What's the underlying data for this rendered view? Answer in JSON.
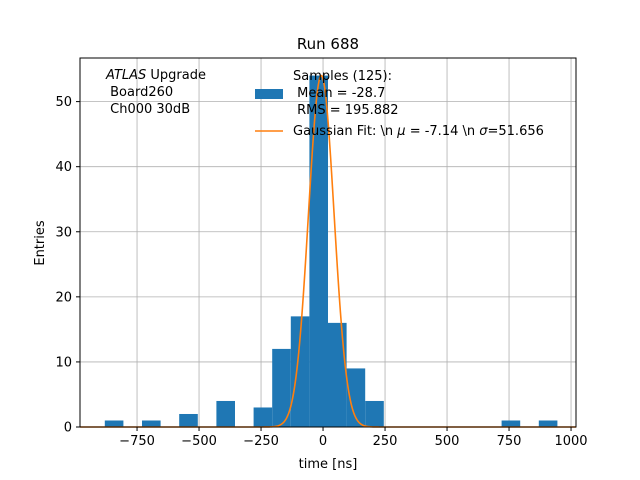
{
  "chart_data": {
    "type": "bar",
    "title": "Run 688",
    "xlabel": "time [ns]",
    "ylabel": "Entries",
    "xlim": [
      -980,
      1020
    ],
    "ylim": [
      0,
      56.7
    ],
    "grid": true,
    "xticks": [
      -750,
      -500,
      -250,
      0,
      250,
      500,
      750,
      1000
    ],
    "xtick_labels": [
      "−750",
      "−500",
      "−250",
      "0",
      "250",
      "500",
      "750",
      "1000"
    ],
    "yticks": [
      0,
      10,
      20,
      30,
      40,
      50
    ],
    "ytick_labels": [
      "0",
      "10",
      "20",
      "30",
      "40",
      "50"
    ],
    "bin_width": 75,
    "bars": [
      {
        "x0": -880,
        "x1": -805,
        "value": 1
      },
      {
        "x0": -730,
        "x1": -655,
        "value": 1
      },
      {
        "x0": -580,
        "x1": -505,
        "value": 2
      },
      {
        "x0": -430,
        "x1": -355,
        "value": 4
      },
      {
        "x0": -280,
        "x1": -205,
        "value": 3
      },
      {
        "x0": -205,
        "x1": -130,
        "value": 12
      },
      {
        "x0": -130,
        "x1": -55,
        "value": 17
      },
      {
        "x0": -55,
        "x1": 20,
        "value": 54
      },
      {
        "x0": 20,
        "x1": 95,
        "value": 16
      },
      {
        "x0": 95,
        "x1": 170,
        "value": 9
      },
      {
        "x0": 170,
        "x1": 245,
        "value": 4
      },
      {
        "x0": 720,
        "x1": 795,
        "value": 1
      },
      {
        "x0": 870,
        "x1": 945,
        "value": 1
      }
    ],
    "gaussian": {
      "amplitude": 54,
      "mu": -7.14,
      "sigma": 51.656
    },
    "series": [
      {
        "name": "Samples (125):",
        "type": "bar",
        "color": "#1f77b4"
      },
      {
        "name": "Gaussian Fit: \\n $\\mu$ = -7.14 \\n $\\sigma$=51.656",
        "type": "line",
        "color": "#ff7f0e"
      }
    ],
    "legend": {
      "placement": "top-center",
      "samples_line1": "Samples (125):",
      "samples_line2": " Mean = -28.7",
      "samples_line3": " RMS = 195.882",
      "fit_prefix": "Gaussian Fit: \\n ",
      "fit_mu_symbol": "μ",
      "fit_mid": " = -7.14 \\n ",
      "fit_sigma_symbol": "σ",
      "fit_suffix": "=51.656"
    },
    "annotation": {
      "line1_italic": "ATLAS",
      "line1_rest": " Upgrade",
      "line2": " Board260",
      "line3": " Ch000 30dB"
    },
    "colors": {
      "bar": "#1f77b4",
      "fit": "#ff7f0e",
      "grid": "#b0b0b0"
    }
  }
}
